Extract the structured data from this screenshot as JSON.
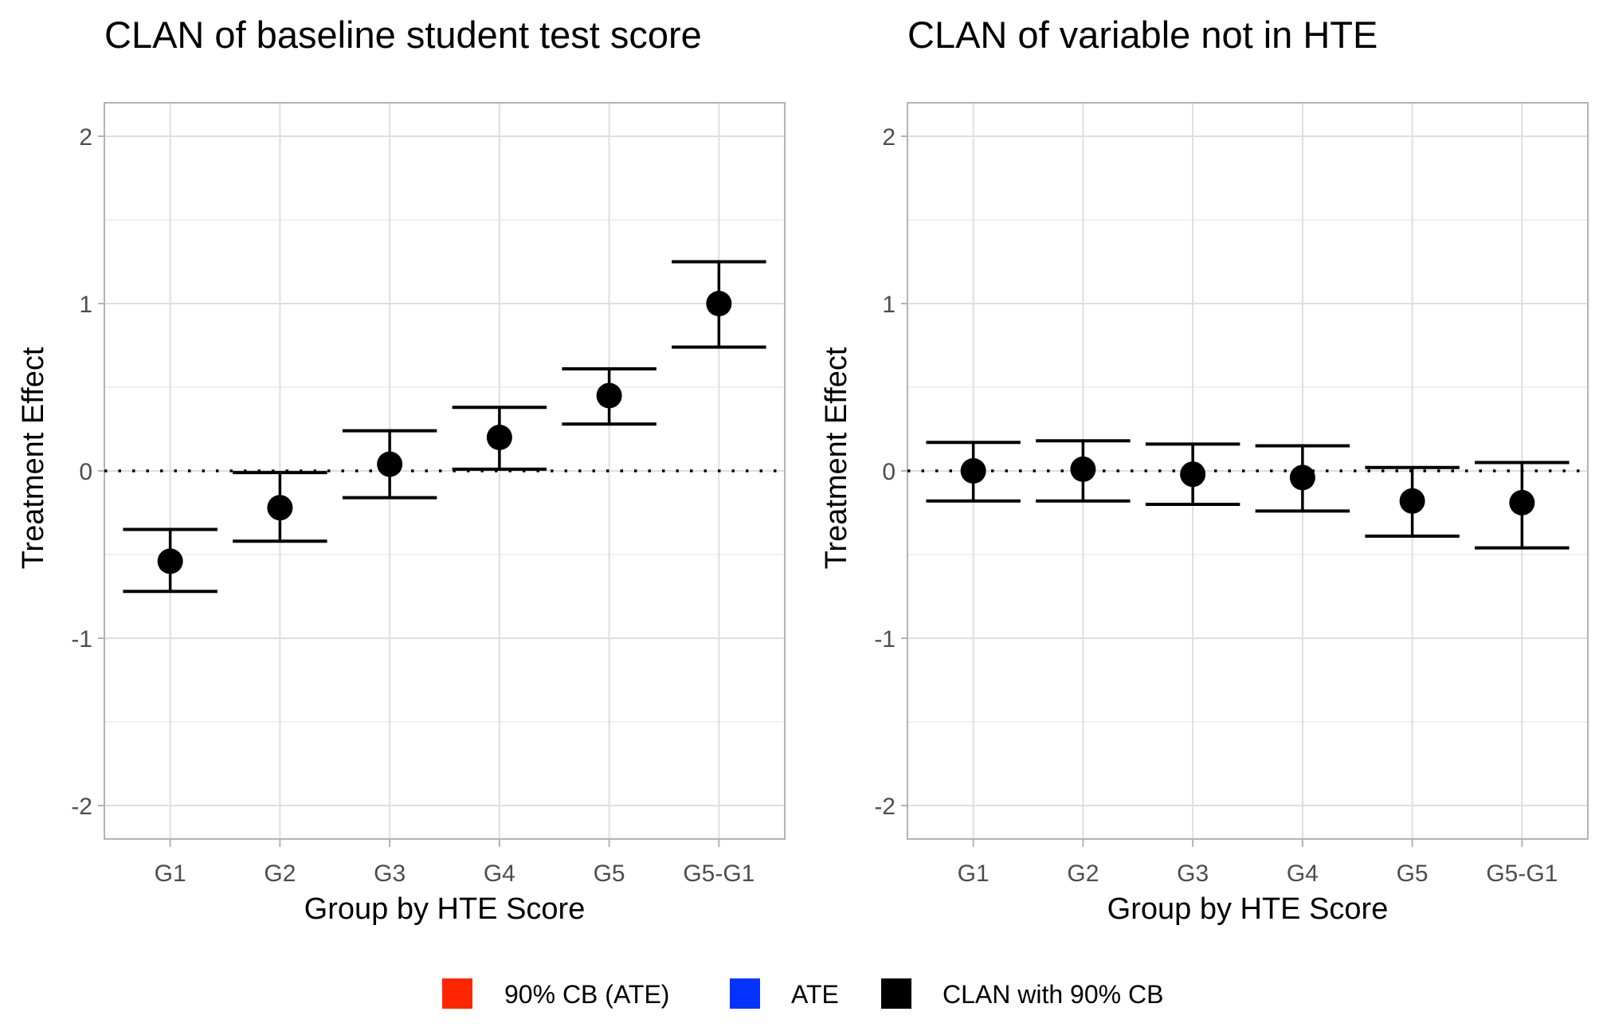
{
  "chart_data": [
    {
      "type": "scatter",
      "subtype": "point-with-errorbars",
      "title": "CLAN of baseline student test score",
      "xlabel": "Group by HTE Score",
      "ylabel": "Treatment Effect",
      "categories": [
        "G1",
        "G2",
        "G3",
        "G4",
        "G5",
        "G5-G1"
      ],
      "estimate": [
        -0.54,
        -0.22,
        0.04,
        0.2,
        0.45,
        1.0
      ],
      "lower": [
        -0.72,
        -0.42,
        -0.16,
        0.01,
        0.28,
        0.74
      ],
      "upper": [
        -0.35,
        -0.01,
        0.24,
        0.38,
        0.61,
        1.25
      ],
      "ylim": [
        -2.2,
        2.2
      ],
      "yticks": [
        -2,
        -1,
        0,
        1,
        2
      ],
      "ytick_labels": [
        "-2",
        "-1",
        "0",
        "1",
        "2"
      ],
      "reference_line": 0,
      "grid": true
    },
    {
      "type": "scatter",
      "subtype": "point-with-errorbars",
      "title": "CLAN of variable not in HTE",
      "xlabel": "Group by HTE Score",
      "ylabel": "Treatment Effect",
      "categories": [
        "G1",
        "G2",
        "G3",
        "G4",
        "G5",
        "G5-G1"
      ],
      "estimate": [
        0.0,
        0.01,
        -0.02,
        -0.04,
        -0.18,
        -0.19
      ],
      "lower": [
        -0.18,
        -0.18,
        -0.2,
        -0.24,
        -0.39,
        -0.46
      ],
      "upper": [
        0.17,
        0.18,
        0.16,
        0.15,
        0.02,
        0.05
      ],
      "ylim": [
        -2.2,
        2.2
      ],
      "yticks": [
        -2,
        -1,
        0,
        1,
        2
      ],
      "ytick_labels": [
        "-2",
        "-1",
        "0",
        "1",
        "2"
      ],
      "reference_line": 0,
      "grid": true
    }
  ],
  "legend": {
    "placement": "bottom",
    "items": [
      {
        "label": "90% CB (ATE)",
        "color": "#FF2600"
      },
      {
        "label": "ATE",
        "color": "#0433FF"
      },
      {
        "label": "CLAN with 90% CB",
        "color": "#000000"
      }
    ]
  }
}
